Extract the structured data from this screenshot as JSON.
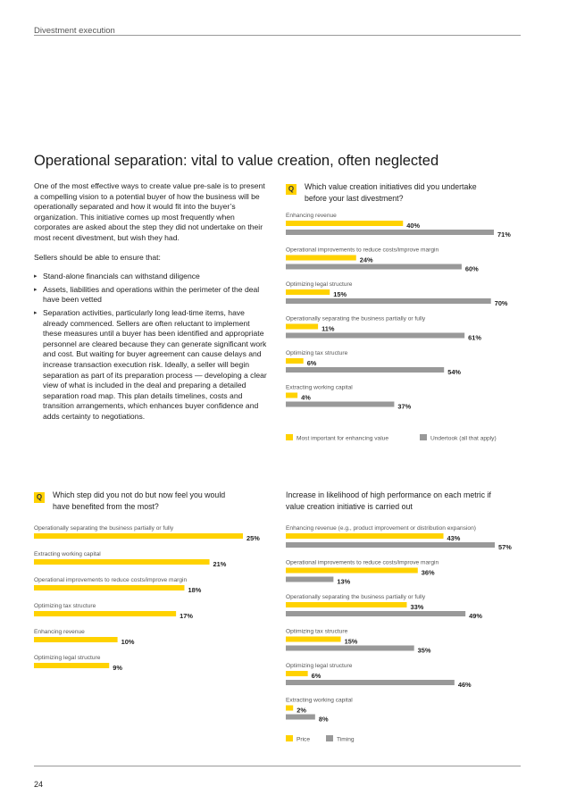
{
  "header": {
    "section": "Divestment execution"
  },
  "title": "Operational separation: vital to value creation, often neglected",
  "body": {
    "paragraph1": "One of the most effective ways to create value pre-sale is to present a compelling vision to a potential buyer of how the business will be operationally separated and how it would fit into the buyer’s organization. This initiative comes up most frequently when corporates are asked about the step they did not undertake on their most recent divestment, but wish they had.",
    "paragraph2": "Sellers should be able to ensure that:",
    "bullets": [
      "Stand-alone financials can withstand diligence",
      "Assets, liabilities and operations within the perimeter of the deal have been vetted",
      "Separation activities, particularly long lead-time items, have already commenced. Sellers are often reluctant to implement these measures until a buyer has been identified and appropriate personnel are cleared because they can generate significant work and cost. But waiting for buyer agreement can cause delays and increase transaction execution risk. Ideally, a seller will begin separation as part of its preparation process — developing a clear view of what is included in the deal and preparing a detailed separation road map. This plan details timelines, costs and transition arrangements, which enhances buyer confidence and adds certainty to negotiations."
    ]
  },
  "badge": "Q",
  "chart_data": [
    {
      "type": "bar",
      "title": "Which value creation initiatives did you undertake before your last divestment?",
      "categories": [
        "Enhancing revenue",
        "Operational improvements to reduce costs/improve margin",
        "Optimizing legal structure",
        "Operationally separating the business partially or fully",
        "Optimizing tax structure",
        "Extracting working capital"
      ],
      "series": [
        {
          "name": "Most important for enhancing value",
          "values": [
            40,
            24,
            15,
            11,
            6,
            4
          ],
          "labels": [
            "40%",
            "24%",
            "15%",
            "11%",
            "6%",
            "4%"
          ]
        },
        {
          "name": "Undertook (all that apply)",
          "values": [
            71,
            60,
            70,
            61,
            54,
            37
          ],
          "labels": [
            "71%",
            "60%",
            "70%",
            "61%",
            "54%",
            "37%"
          ]
        }
      ],
      "colors": [
        "#ffd200",
        "#999999"
      ],
      "xlim": [
        0,
        71
      ],
      "legend": "bottom"
    },
    {
      "type": "bar",
      "title": "Which step did you not do but now feel you would have benefited from the most?",
      "categories": [
        "Operationally separating the business partially or fully",
        "Extracting working capital",
        "Operational improvements to reduce costs/improve margin",
        "Optimizing tax structure",
        "Enhancing revenue",
        "Optimizing legal structure"
      ],
      "series": [
        {
          "values": [
            25,
            21,
            18,
            17,
            10,
            9
          ],
          "labels": [
            "25%",
            "21%",
            "18%",
            "17%",
            "10%",
            "9%"
          ]
        }
      ],
      "colors": [
        "#ffd200",
        "#999999"
      ],
      "xlim": [
        0,
        25
      ]
    },
    {
      "type": "bar",
      "title": "Increase in likelihood of high performance on each metric if value creation initiative is carried out",
      "categories": [
        "Enhancing revenue (e.g., product improvement or distribution expansion)",
        "Operational improvements to reduce costs/improve margin",
        "Operationally separating the business partially or fully",
        "Optimizing tax structure",
        "Optimizing legal structure",
        "Extracting working capital"
      ],
      "series": [
        {
          "name": "Price",
          "values": [
            43,
            36,
            33,
            15,
            6,
            2
          ],
          "labels": [
            "43%",
            "36%",
            "33%",
            "15%",
            "6%",
            "2%"
          ]
        },
        {
          "name": "Timing",
          "values": [
            57,
            13,
            49,
            35,
            46,
            8
          ],
          "labels": [
            "57%",
            "13%",
            "49%",
            "35%",
            "46%",
            "8%"
          ]
        }
      ],
      "colors": [
        "#ffd200",
        "#999999"
      ],
      "xlim": [
        0,
        57
      ],
      "legend": "bottom"
    }
  ],
  "page_number": "24"
}
